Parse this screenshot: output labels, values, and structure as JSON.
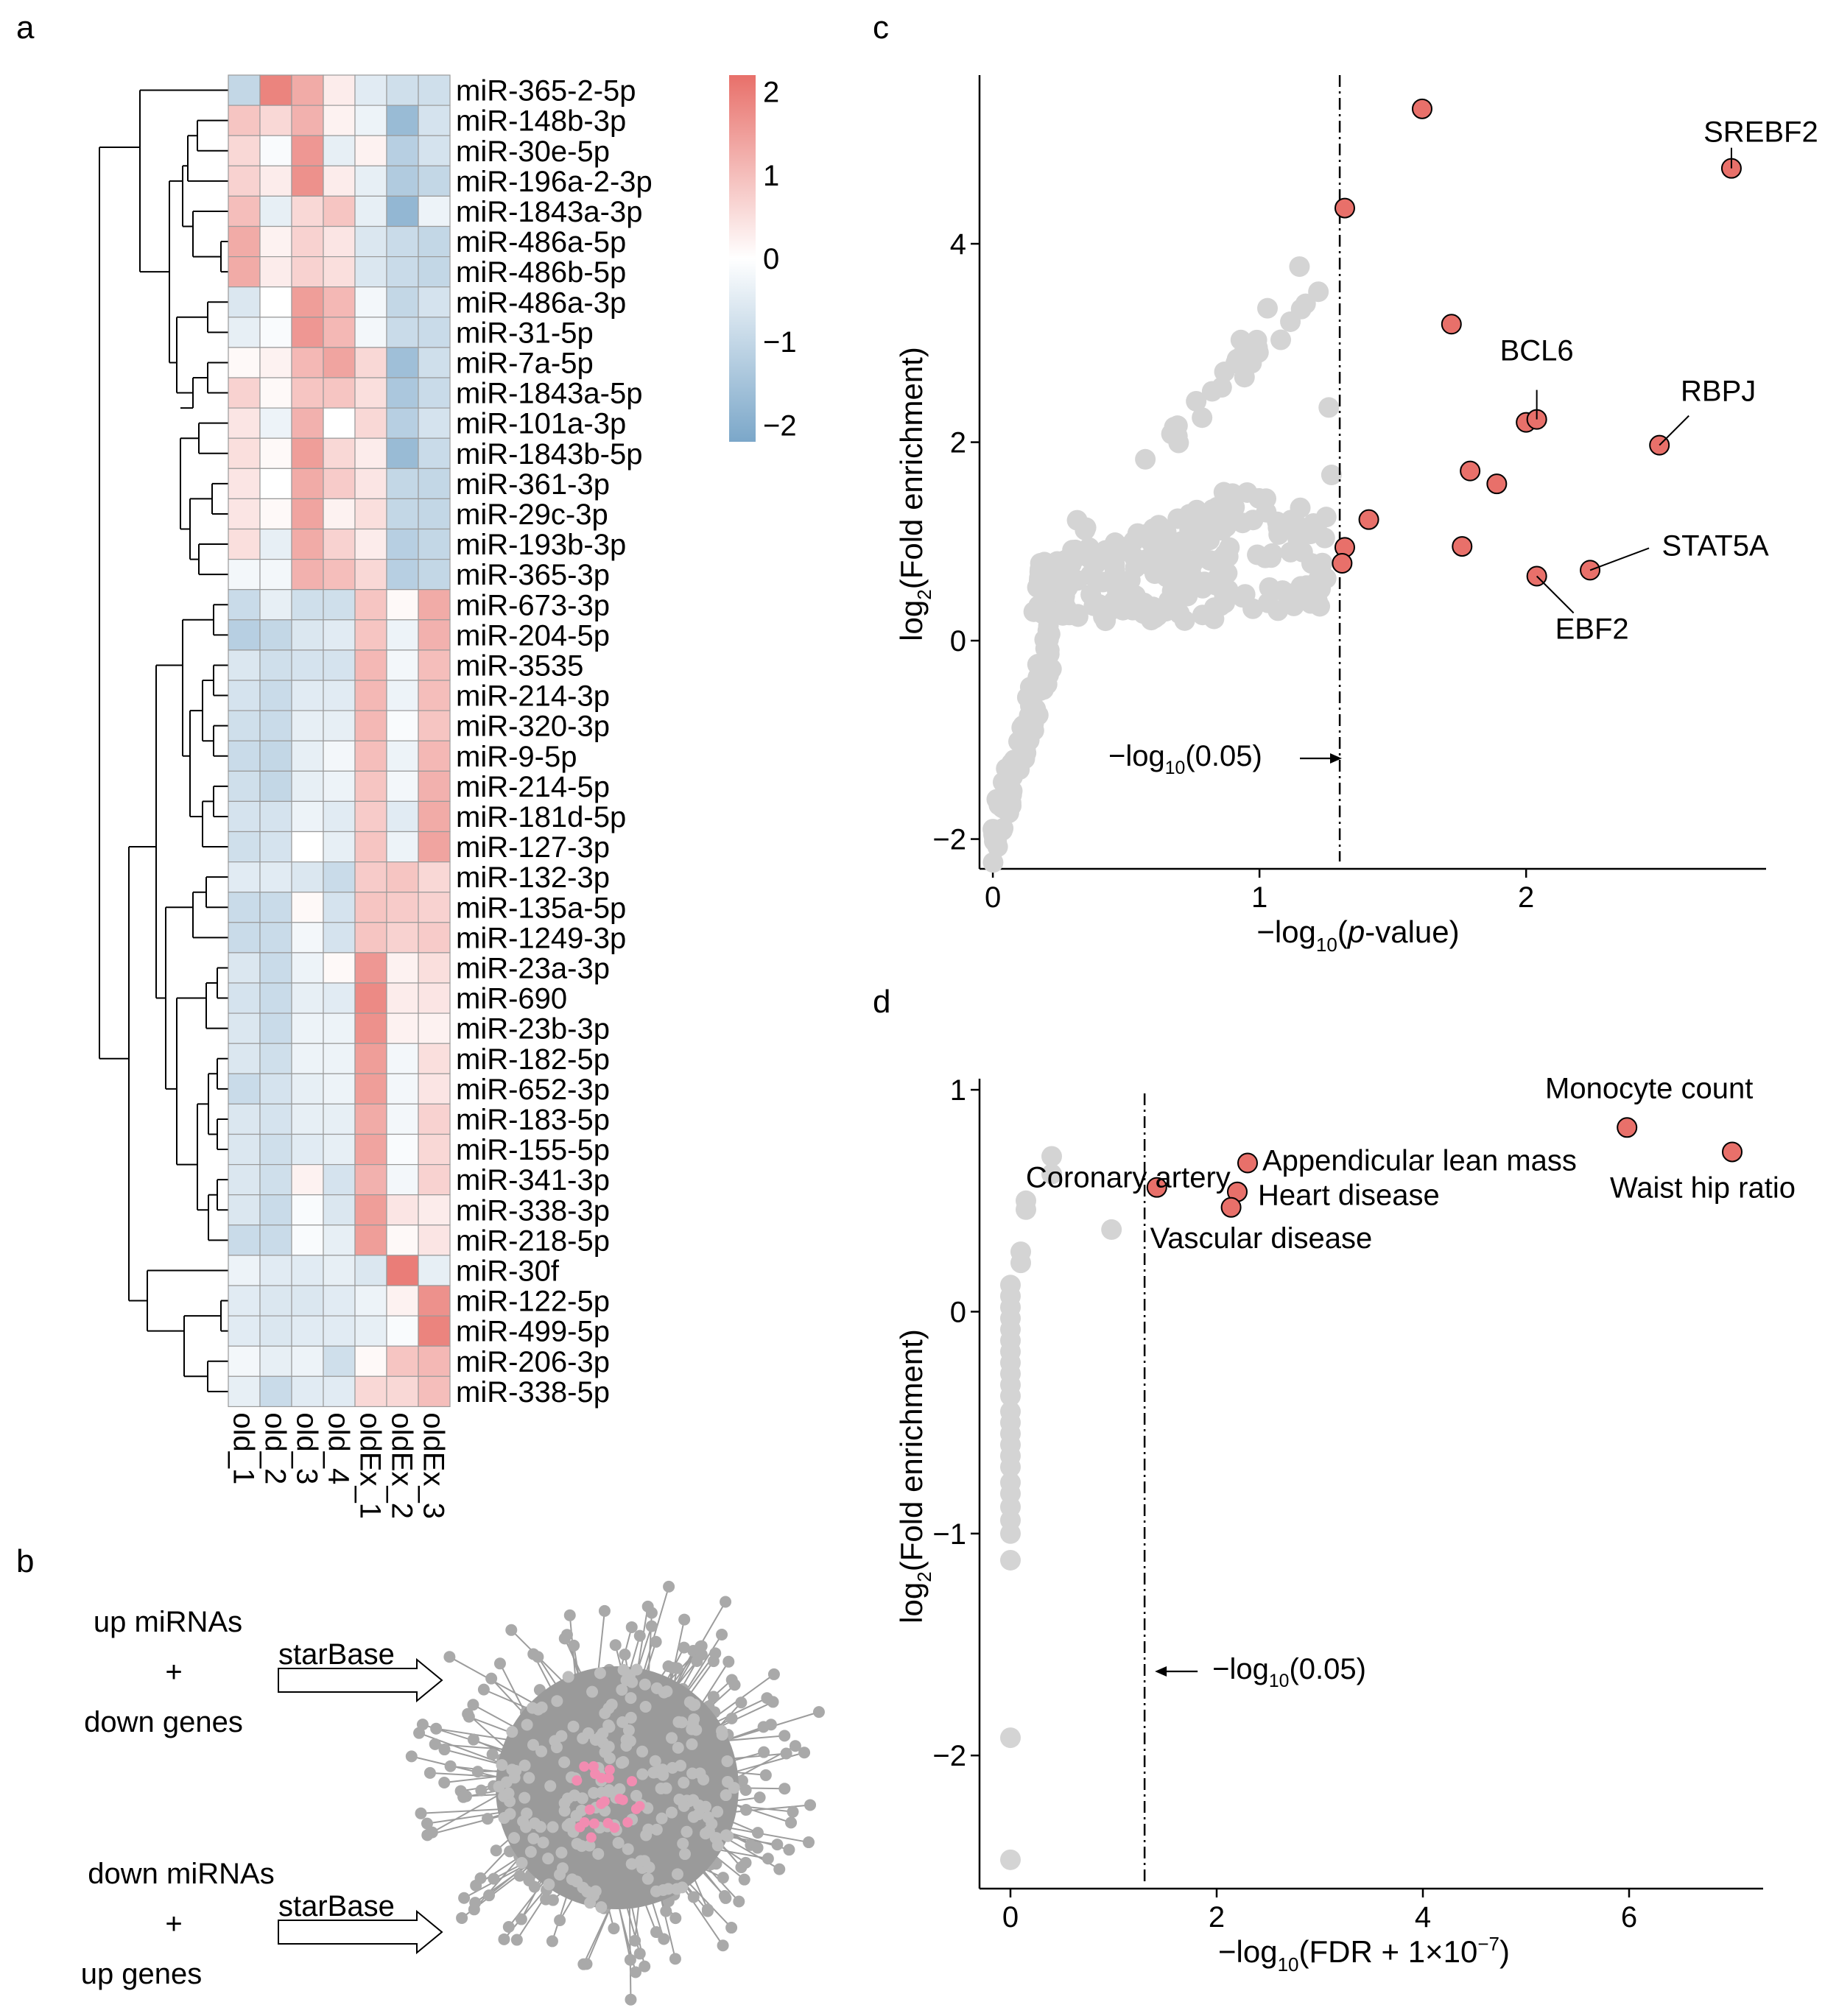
{
  "panels": {
    "a": {
      "label": "a"
    },
    "b": {
      "label": "b"
    },
    "c": {
      "label": "c"
    },
    "d": {
      "label": "d"
    }
  },
  "colors": {
    "high": "#e8706a",
    "mid": "#ffffff",
    "low": "#7ba7c9",
    "grey_point": "#d4d4d4",
    "sig_point": "#e8706a",
    "network_grey": "#a9a9a9",
    "network_pink": "#f28cb1"
  },
  "diagram": {
    "label1_l1": "up miRNAs",
    "label1_l2": "+",
    "label1_l3": "down genes",
    "label2_l1": "down miRNAs",
    "label2_l2": "+",
    "label2_l3": "up genes",
    "tool": "starBase"
  },
  "chart_data": [
    {
      "type": "heatmap",
      "title": "",
      "rows": [
        "miR-365-2-5p",
        "miR-148b-3p",
        "miR-30e-5p",
        "miR-196a-2-3p",
        "miR-1843a-3p",
        "miR-486a-5p",
        "miR-486b-5p",
        "miR-486a-3p",
        "miR-31-5p",
        "miR-7a-5p",
        "miR-1843a-5p",
        "miR-101a-3p",
        "miR-1843b-5p",
        "miR-361-3p",
        "miR-29c-3p",
        "miR-193b-3p",
        "miR-365-3p",
        "miR-673-3p",
        "miR-204-5p",
        "miR-3535",
        "miR-214-3p",
        "miR-320-3p",
        "miR-9-5p",
        "miR-214-5p",
        "miR-181d-5p",
        "miR-127-3p",
        "miR-132-3p",
        "miR-135a-5p",
        "miR-1249-3p",
        "miR-23a-3p",
        "miR-690",
        "miR-23b-3p",
        "miR-182-5p",
        "miR-652-3p",
        "miR-183-5p",
        "miR-155-5p",
        "miR-341-3p",
        "miR-338-3p",
        "miR-218-5p",
        "miR-30f",
        "miR-122-5p",
        "miR-499-5p",
        "miR-206-3p",
        "miR-338-5p"
      ],
      "columns": [
        "old_1",
        "old_2",
        "old_3",
        "old_4",
        "oldEx_1",
        "oldEx_2",
        "oldEx_3"
      ],
      "values": [
        [
          -1.0,
          1.9,
          1.3,
          0.3,
          -0.5,
          -0.8,
          -0.8
        ],
        [
          0.9,
          0.6,
          1.2,
          0.2,
          -0.3,
          -1.7,
          -0.7
        ],
        [
          0.6,
          -0.1,
          1.6,
          -0.4,
          0.2,
          -1.2,
          -0.7
        ],
        [
          0.7,
          0.3,
          1.7,
          0.3,
          -0.4,
          -1.3,
          -1.0
        ],
        [
          1.0,
          -0.4,
          0.6,
          0.9,
          -0.4,
          -1.8,
          -0.3
        ],
        [
          1.3,
          0.2,
          0.7,
          0.4,
          -0.6,
          -0.9,
          -1.0
        ],
        [
          1.3,
          0.3,
          0.7,
          0.5,
          -0.6,
          -0.9,
          -1.0
        ],
        [
          -0.6,
          0.0,
          1.5,
          1.1,
          -0.2,
          -1.0,
          -0.7
        ],
        [
          -0.4,
          -0.1,
          1.6,
          1.1,
          -0.2,
          -0.9,
          -0.9
        ],
        [
          0.1,
          0.2,
          1.1,
          1.4,
          0.6,
          -1.6,
          -0.8
        ],
        [
          0.7,
          0.1,
          0.9,
          0.9,
          0.5,
          -1.4,
          -0.9
        ],
        [
          0.4,
          -0.3,
          1.2,
          0.0,
          0.6,
          -1.2,
          -0.7
        ],
        [
          0.5,
          0.1,
          1.5,
          0.6,
          0.3,
          -1.7,
          -0.9
        ],
        [
          0.4,
          0.0,
          1.3,
          0.8,
          0.4,
          -1.0,
          -1.0
        ],
        [
          0.4,
          0.1,
          1.4,
          0.2,
          0.5,
          -1.0,
          -1.0
        ],
        [
          0.5,
          -0.4,
          1.3,
          0.7,
          0.3,
          -1.2,
          -1.0
        ],
        [
          -0.2,
          -0.2,
          1.2,
          1.0,
          0.6,
          -1.2,
          -1.0
        ],
        [
          -0.9,
          -0.4,
          -0.8,
          -0.8,
          0.9,
          0.1,
          1.3
        ],
        [
          -1.2,
          -1.0,
          -0.6,
          -0.5,
          0.9,
          -0.3,
          1.2
        ],
        [
          -0.6,
          -0.8,
          -0.7,
          -0.7,
          1.1,
          -0.2,
          1.0
        ],
        [
          -0.7,
          -0.9,
          -0.5,
          -0.5,
          1.1,
          -0.3,
          1.0
        ],
        [
          -0.8,
          -0.9,
          -0.4,
          -0.4,
          1.1,
          -0.1,
          0.9
        ],
        [
          -0.9,
          -1.0,
          -0.4,
          -0.2,
          1.0,
          -0.3,
          1.1
        ],
        [
          -0.8,
          -1.0,
          -0.4,
          -0.3,
          0.9,
          -0.2,
          1.2
        ],
        [
          -0.7,
          -0.7,
          -0.3,
          -0.5,
          0.8,
          -0.5,
          1.3
        ],
        [
          -0.8,
          -0.7,
          0.0,
          -0.4,
          0.9,
          -0.3,
          1.4
        ],
        [
          -0.5,
          -0.5,
          -0.6,
          -0.9,
          0.8,
          0.9,
          0.6
        ],
        [
          -0.9,
          -0.9,
          0.1,
          -0.7,
          0.9,
          0.8,
          0.7
        ],
        [
          -0.9,
          -0.9,
          -0.2,
          -0.7,
          0.9,
          0.7,
          0.8
        ],
        [
          -0.6,
          -0.9,
          -0.3,
          0.1,
          1.6,
          0.2,
          0.5
        ],
        [
          -0.7,
          -0.9,
          -0.4,
          -0.5,
          1.8,
          0.3,
          0.4
        ],
        [
          -0.6,
          -0.9,
          -0.3,
          -0.3,
          1.7,
          0.2,
          0.2
        ],
        [
          -0.6,
          -0.8,
          -0.3,
          -0.3,
          1.5,
          -0.2,
          0.5
        ],
        [
          -0.9,
          -0.7,
          -0.4,
          -0.3,
          1.5,
          -0.2,
          0.4
        ],
        [
          -0.6,
          -0.7,
          -0.4,
          -0.4,
          1.3,
          -0.2,
          0.7
        ],
        [
          -0.6,
          -0.8,
          -0.5,
          -0.4,
          1.4,
          -0.1,
          0.6
        ],
        [
          -0.6,
          -0.8,
          0.2,
          -0.7,
          1.2,
          -0.2,
          0.7
        ],
        [
          -0.6,
          -0.9,
          -0.1,
          -0.6,
          1.5,
          0.4,
          0.3
        ],
        [
          -0.9,
          -0.9,
          -0.1,
          -0.4,
          1.5,
          0.1,
          0.4
        ],
        [
          -0.3,
          -0.5,
          -0.5,
          -0.4,
          -0.6,
          2.0,
          -0.4
        ],
        [
          -0.5,
          -0.6,
          -0.6,
          -0.5,
          -0.3,
          0.2,
          1.7
        ],
        [
          -0.5,
          -0.6,
          -0.5,
          -0.5,
          -0.4,
          -0.1,
          1.9
        ],
        [
          -0.2,
          -0.4,
          -0.3,
          -0.8,
          0.1,
          0.9,
          1.1
        ],
        [
          -0.4,
          -0.9,
          -0.5,
          -0.5,
          0.6,
          0.6,
          1.0
        ]
      ],
      "legend": {
        "ticks": [
          2,
          1,
          0,
          -1,
          -2
        ],
        "tick_labels": [
          "2",
          "1",
          "0",
          "−1",
          "−2"
        ],
        "range": [
          -2.2,
          2.2
        ]
      }
    },
    {
      "type": "scatter",
      "title": "",
      "xlabel": "−log10(p-value)",
      "ylabel": "log2(Fold enrichment)",
      "xlim": [
        -0.05,
        2.9
      ],
      "ylim": [
        -2.3,
        5.7
      ],
      "xticks": [
        0,
        1,
        2
      ],
      "xtick_labels": [
        "0",
        "1",
        "2"
      ],
      "yticks": [
        -2,
        0,
        2,
        4
      ],
      "ytick_labels": [
        "−2",
        "0",
        "2",
        "4"
      ],
      "threshold": 1.301,
      "threshold_label": {
        "prefix": "−log",
        "sub": "10",
        "suffix": "(0.05)"
      },
      "significant_points": [
        {
          "x": 1.61,
          "y": 5.36
        },
        {
          "x": 2.77,
          "y": 4.76
        },
        {
          "x": 1.32,
          "y": 4.36
        },
        {
          "x": 1.72,
          "y": 3.19
        },
        {
          "x": 2.0,
          "y": 2.2
        },
        {
          "x": 2.04,
          "y": 2.23
        },
        {
          "x": 2.5,
          "y": 1.97
        },
        {
          "x": 1.79,
          "y": 1.71
        },
        {
          "x": 1.89,
          "y": 1.58
        },
        {
          "x": 1.41,
          "y": 1.22
        },
        {
          "x": 1.32,
          "y": 0.94
        },
        {
          "x": 1.31,
          "y": 0.78
        },
        {
          "x": 1.76,
          "y": 0.95
        },
        {
          "x": 2.24,
          "y": 0.71
        },
        {
          "x": 2.04,
          "y": 0.65
        }
      ],
      "labels": [
        {
          "text": "SREBF2",
          "x": 2.77,
          "y": 4.76
        },
        {
          "text": "BCL6",
          "x": 2.04,
          "y": 2.23
        },
        {
          "text": "RBPJ",
          "x": 2.5,
          "y": 1.97
        },
        {
          "text": "STAT5A",
          "x": 2.24,
          "y": 0.71
        },
        {
          "text": "EBF2",
          "x": 2.04,
          "y": 0.65
        }
      ]
    },
    {
      "type": "scatter",
      "title": "",
      "xlabel": "−log10(FDR + 1×10⁻⁷)",
      "ylabel": "log2(Fold enrichment)",
      "xlim": [
        -0.3,
        7.3
      ],
      "ylim": [
        -2.6,
        1.05
      ],
      "xticks": [
        0,
        2,
        4,
        6
      ],
      "xtick_labels": [
        "0",
        "2",
        "4",
        "6"
      ],
      "yticks": [
        -2,
        -1,
        0,
        1
      ],
      "ytick_labels": [
        "−2",
        "−1",
        "0",
        "1"
      ],
      "threshold": 1.301,
      "threshold_label": {
        "prefix": "−log",
        "sub": "10",
        "suffix": "(0.05)"
      },
      "grey_points": [
        {
          "x": 0.4,
          "y": 0.7
        },
        {
          "x": 0.4,
          "y": 0.62
        },
        {
          "x": 0.15,
          "y": 0.5
        },
        {
          "x": 0.15,
          "y": 0.46
        },
        {
          "x": 0.1,
          "y": 0.27
        },
        {
          "x": 0.1,
          "y": 0.22
        },
        {
          "x": 0.98,
          "y": 0.37
        },
        {
          "x": 0.0,
          "y": 0.12
        },
        {
          "x": 0.0,
          "y": 0.07
        },
        {
          "x": 0.0,
          "y": 0.02
        },
        {
          "x": 0.0,
          "y": -0.03
        },
        {
          "x": 0.0,
          "y": -0.08
        },
        {
          "x": 0.0,
          "y": -0.13
        },
        {
          "x": 0.0,
          "y": -0.18
        },
        {
          "x": 0.0,
          "y": -0.23
        },
        {
          "x": 0.0,
          "y": -0.28
        },
        {
          "x": 0.0,
          "y": -0.33
        },
        {
          "x": 0.0,
          "y": -0.38
        },
        {
          "x": 0.0,
          "y": -0.45
        },
        {
          "x": 0.0,
          "y": -0.5
        },
        {
          "x": 0.0,
          "y": -0.55
        },
        {
          "x": 0.0,
          "y": -0.6
        },
        {
          "x": 0.0,
          "y": -0.65
        },
        {
          "x": 0.0,
          "y": -0.7
        },
        {
          "x": 0.0,
          "y": -0.77
        },
        {
          "x": 0.0,
          "y": -0.82
        },
        {
          "x": 0.0,
          "y": -0.88
        },
        {
          "x": 0.0,
          "y": -0.94
        },
        {
          "x": 0.0,
          "y": -1.0
        },
        {
          "x": 0.0,
          "y": -1.12
        },
        {
          "x": 0.0,
          "y": -1.92
        },
        {
          "x": 0.0,
          "y": -2.47
        }
      ],
      "significant_points": [
        {
          "x": 5.98,
          "y": 0.83
        },
        {
          "x": 7.0,
          "y": 0.72
        },
        {
          "x": 2.3,
          "y": 0.67
        },
        {
          "x": 1.42,
          "y": 0.56
        },
        {
          "x": 2.2,
          "y": 0.54
        },
        {
          "x": 2.14,
          "y": 0.47
        }
      ],
      "labels": [
        {
          "text": "Monocyte count",
          "x": 5.98,
          "y": 0.83
        },
        {
          "text": "Appendicular lean mass",
          "x": 2.3,
          "y": 0.67
        },
        {
          "text": "Coronary artery",
          "x": 1.42,
          "y": 0.56
        },
        {
          "text": "Waist hip ratio",
          "x": 7.0,
          "y": 0.72
        },
        {
          "text": "Heart disease",
          "x": 2.2,
          "y": 0.54
        },
        {
          "text": "Vascular disease",
          "x": 2.14,
          "y": 0.47
        }
      ]
    }
  ]
}
